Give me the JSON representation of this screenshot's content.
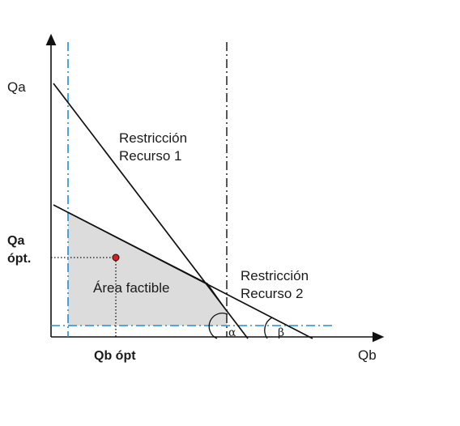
{
  "axes": {
    "y_label": "Qa",
    "x_label": "Qb"
  },
  "optimum": {
    "qa_label_line1": "Qa",
    "qa_label_line2": "ópt.",
    "qb_label": "Qb ópt"
  },
  "constraints": {
    "resource1_line1": "Restricción",
    "resource1_line2": "Recurso 1",
    "resource2_line1": "Restricción",
    "resource2_line2": "Recurso 2"
  },
  "region": {
    "label": "Área factible",
    "fill_color": "#dcdcdc"
  },
  "angles": {
    "alpha": "α",
    "beta": "β"
  },
  "colors": {
    "guide_blue": "#1e90d6",
    "point_red": "#d62020",
    "line_black": "#111111"
  }
}
